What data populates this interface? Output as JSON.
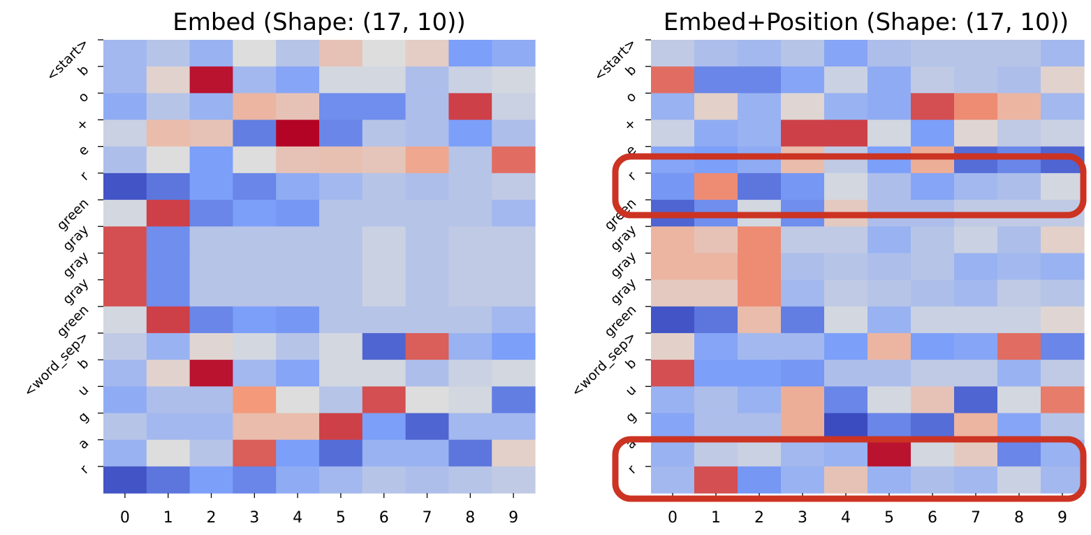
{
  "chart_data": [
    {
      "type": "heatmap",
      "title": "Embed (Shape: (17, 10))",
      "xlabel": "",
      "ylabel": "",
      "colormap": "coolwarm",
      "colorbar": false,
      "grid": false,
      "x_tick_labels": [
        "0",
        "1",
        "2",
        "3",
        "4",
        "5",
        "6",
        "7",
        "8",
        "9"
      ],
      "y_tick_labels": [
        "<start>",
        "b",
        "o",
        "+",
        "e",
        "r",
        "green",
        "gray",
        "gray",
        "gray",
        "green",
        "<word_sep>",
        "b",
        "u",
        "g",
        "a",
        "r"
      ],
      "values": [
        [
          -0.3,
          -0.2,
          -0.35,
          0.0,
          -0.2,
          0.2,
          0.0,
          0.12,
          -0.5,
          -0.4
        ],
        [
          -0.3,
          0.08,
          0.95,
          -0.3,
          -0.45,
          -0.05,
          -0.05,
          -0.25,
          -0.1,
          -0.05
        ],
        [
          -0.4,
          -0.2,
          -0.35,
          0.3,
          0.2,
          -0.6,
          -0.6,
          -0.25,
          0.8,
          -0.1
        ],
        [
          -0.1,
          0.25,
          0.2,
          -0.7,
          1.0,
          -0.65,
          -0.2,
          -0.25,
          -0.5,
          -0.25
        ],
        [
          -0.25,
          0.0,
          -0.5,
          0.0,
          0.2,
          0.22,
          0.18,
          0.4,
          -0.2,
          0.65
        ],
        [
          -0.95,
          -0.75,
          -0.5,
          -0.65,
          -0.4,
          -0.3,
          -0.2,
          -0.25,
          -0.2,
          -0.15
        ],
        [
          -0.05,
          0.8,
          -0.65,
          -0.5,
          -0.55,
          -0.2,
          -0.2,
          -0.2,
          -0.2,
          -0.3
        ],
        [
          0.75,
          -0.6,
          -0.2,
          -0.2,
          -0.2,
          -0.2,
          -0.1,
          -0.2,
          -0.15,
          -0.15
        ],
        [
          0.75,
          -0.6,
          -0.2,
          -0.2,
          -0.2,
          -0.2,
          -0.1,
          -0.2,
          -0.15,
          -0.15
        ],
        [
          0.75,
          -0.6,
          -0.2,
          -0.2,
          -0.2,
          -0.2,
          -0.1,
          -0.2,
          -0.15,
          -0.15
        ],
        [
          -0.05,
          0.8,
          -0.65,
          -0.5,
          -0.55,
          -0.2,
          -0.2,
          -0.2,
          -0.2,
          -0.3
        ],
        [
          -0.15,
          -0.35,
          0.05,
          -0.05,
          -0.2,
          -0.05,
          -0.85,
          0.7,
          -0.35,
          -0.5
        ],
        [
          -0.3,
          0.08,
          0.95,
          -0.3,
          -0.45,
          -0.05,
          -0.05,
          -0.25,
          -0.1,
          -0.05
        ],
        [
          -0.4,
          -0.25,
          -0.25,
          0.5,
          0.0,
          -0.2,
          0.75,
          0.0,
          -0.05,
          -0.7
        ],
        [
          -0.2,
          -0.3,
          -0.3,
          0.25,
          0.25,
          0.8,
          -0.5,
          -0.85,
          -0.3,
          -0.3
        ],
        [
          -0.35,
          0.0,
          -0.2,
          0.7,
          -0.5,
          -0.8,
          -0.35,
          -0.35,
          -0.75,
          0.1
        ],
        [
          -0.95,
          -0.75,
          -0.5,
          -0.65,
          -0.4,
          -0.3,
          -0.2,
          -0.25,
          -0.2,
          -0.15
        ]
      ],
      "vmin": -1,
      "vmax": 1
    },
    {
      "type": "heatmap",
      "title": "Embed+Position (Shape: (17, 10))",
      "xlabel": "",
      "ylabel": "",
      "colormap": "coolwarm",
      "colorbar": false,
      "grid": false,
      "x_tick_labels": [
        "0",
        "1",
        "2",
        "3",
        "4",
        "5",
        "6",
        "7",
        "8",
        "9"
      ],
      "y_tick_labels": [
        "<start>",
        "b",
        "o",
        "+",
        "e",
        "r",
        "green",
        "gray",
        "gray",
        "gray",
        "green",
        "<word_sep>",
        "b",
        "u",
        "g",
        "a",
        "r"
      ],
      "values": [
        [
          -0.15,
          -0.25,
          -0.3,
          -0.2,
          -0.45,
          -0.25,
          -0.2,
          -0.2,
          -0.2,
          -0.3
        ],
        [
          0.65,
          -0.65,
          -0.65,
          -0.45,
          -0.1,
          -0.4,
          -0.15,
          -0.2,
          -0.25,
          0.08
        ],
        [
          -0.35,
          0.1,
          -0.35,
          0.05,
          -0.35,
          -0.4,
          0.75,
          0.55,
          0.3,
          -0.3
        ],
        [
          -0.1,
          -0.4,
          -0.35,
          0.8,
          0.8,
          -0.05,
          -0.5,
          0.05,
          -0.15,
          -0.1
        ],
        [
          -0.45,
          -0.5,
          -0.4,
          0.25,
          -0.15,
          -0.5,
          0.35,
          -0.8,
          -0.65,
          -0.85
        ],
        [
          -0.55,
          0.55,
          -0.75,
          -0.55,
          -0.05,
          -0.25,
          -0.45,
          -0.3,
          -0.25,
          -0.05
        ],
        [
          -0.85,
          -0.6,
          -0.05,
          -0.6,
          0.15,
          -0.25,
          -0.25,
          -0.15,
          -0.15,
          -0.15
        ],
        [
          0.3,
          0.2,
          0.55,
          -0.15,
          -0.15,
          -0.35,
          -0.2,
          -0.1,
          -0.25,
          0.1
        ],
        [
          0.3,
          0.3,
          0.55,
          -0.25,
          -0.2,
          -0.25,
          -0.2,
          -0.35,
          -0.3,
          -0.35
        ],
        [
          0.15,
          0.15,
          0.55,
          -0.3,
          -0.15,
          -0.2,
          -0.25,
          -0.3,
          -0.15,
          -0.2
        ],
        [
          -0.95,
          -0.75,
          0.25,
          -0.7,
          -0.05,
          -0.35,
          -0.1,
          -0.1,
          -0.1,
          0.05
        ],
        [
          0.1,
          -0.45,
          -0.3,
          -0.3,
          -0.5,
          0.3,
          -0.5,
          -0.45,
          0.65,
          -0.65
        ],
        [
          0.75,
          -0.5,
          -0.5,
          -0.55,
          -0.25,
          -0.25,
          -0.15,
          -0.15,
          -0.35,
          -0.15
        ],
        [
          -0.35,
          -0.25,
          -0.35,
          0.35,
          -0.65,
          -0.05,
          0.2,
          -0.85,
          -0.05,
          0.6
        ],
        [
          -0.45,
          -0.25,
          -0.25,
          0.35,
          -1.0,
          -0.65,
          -0.8,
          0.3,
          -0.45,
          -0.2
        ],
        [
          -0.35,
          -0.15,
          -0.1,
          -0.3,
          -0.35,
          0.95,
          -0.05,
          0.15,
          -0.65,
          -0.35
        ],
        [
          -0.3,
          0.75,
          -0.55,
          -0.35,
          0.2,
          -0.35,
          -0.25,
          -0.3,
          -0.1,
          -0.3
        ]
      ],
      "vmin": -1,
      "vmax": 1
    }
  ],
  "highlight_color": "#cc3322"
}
